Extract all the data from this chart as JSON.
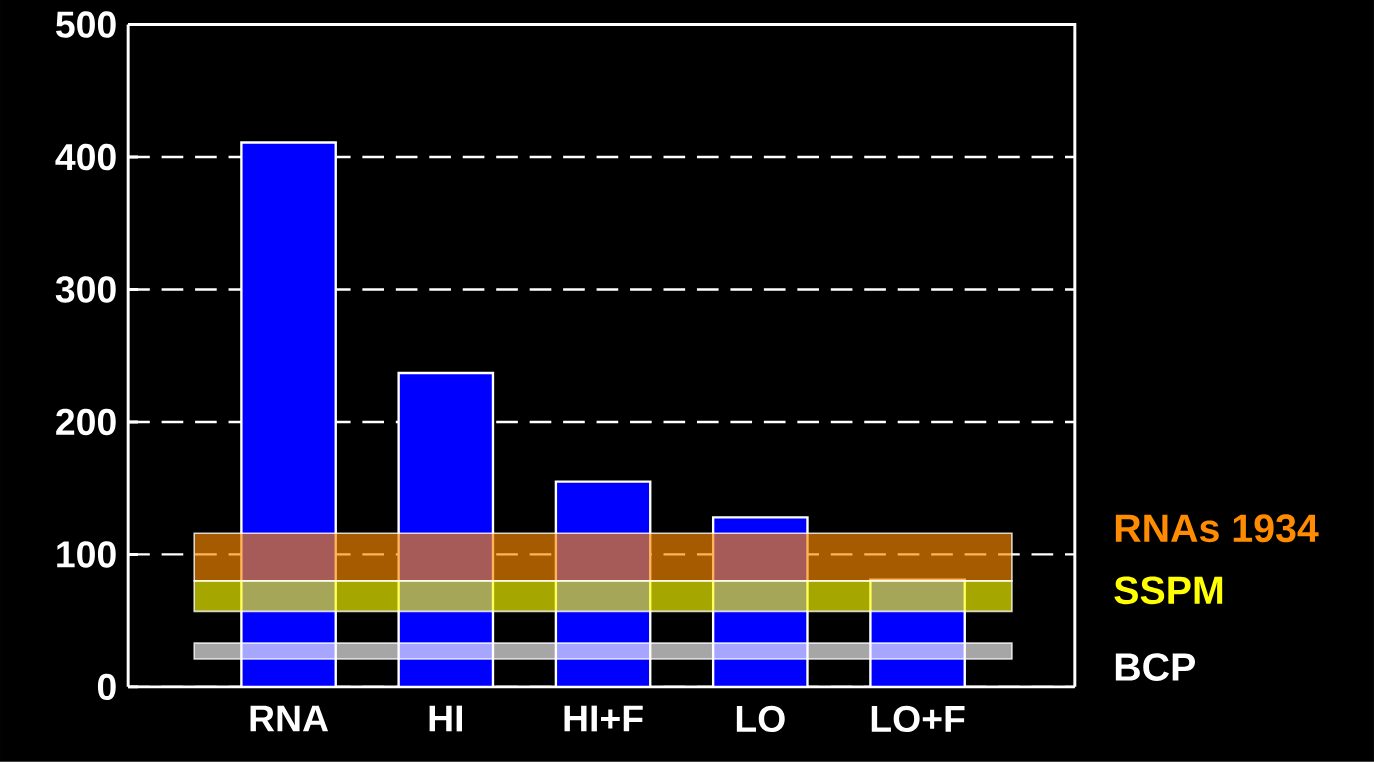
{
  "chart_data": {
    "type": "bar",
    "categories": [
      "RNA",
      "HI",
      "HI+F",
      "LO",
      "LO+F"
    ],
    "values": [
      411,
      237,
      155,
      128,
      81
    ],
    "color": "#0000ff",
    "ylim": [
      0,
      500
    ],
    "yticks": [
      0,
      100,
      200,
      300,
      400,
      500
    ],
    "grid": "y",
    "bands": [
      {
        "axis": "y",
        "from": 80,
        "to": 116,
        "label": "RNAs 1934",
        "color": "#ff8c00"
      },
      {
        "axis": "y",
        "from": 57,
        "to": 80,
        "label": "SSPM",
        "color": "#ffff00"
      },
      {
        "axis": "y",
        "from": 21,
        "to": 33,
        "label": "BCP",
        "color": "#ffffff"
      }
    ]
  }
}
